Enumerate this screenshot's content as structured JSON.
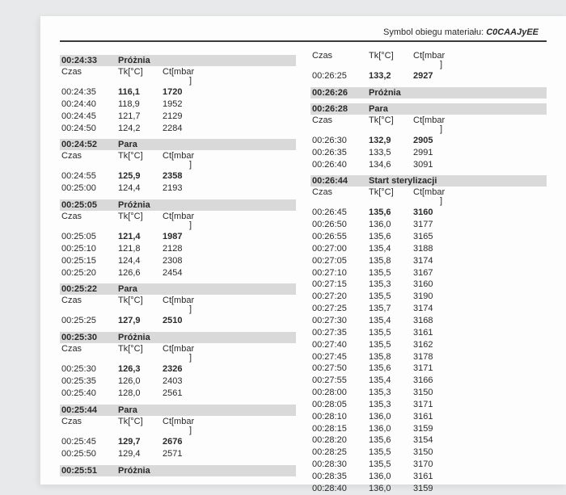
{
  "header": {
    "label": "Symbol obiegu materiału:",
    "code": "C0CAAJyEE"
  },
  "labels": {
    "czas": "Czas",
    "tk": "Tk[°C]",
    "ct": "Ct[mbar",
    "ct2": "]",
    "proznia": "Próżnia",
    "para": "Para",
    "start": "Start sterylizacji"
  },
  "left": [
    {
      "type": "section",
      "time": "00:24:33",
      "label": "proznia",
      "header": true,
      "rows": [
        {
          "t": "00:24:35",
          "tk": "116,1",
          "ct": "1720",
          "bold": true
        },
        {
          "t": "00:24:40",
          "tk": "118,9",
          "ct": "1952"
        },
        {
          "t": "00:24:45",
          "tk": "121,7",
          "ct": "2129"
        },
        {
          "t": "00:24:50",
          "tk": "124,2",
          "ct": "2284"
        }
      ]
    },
    {
      "type": "section",
      "time": "00:24:52",
      "label": "para",
      "header": true,
      "rows": [
        {
          "t": "00:24:55",
          "tk": "125,9",
          "ct": "2358",
          "bold": true
        },
        {
          "t": "00:25:00",
          "tk": "124,4",
          "ct": "2193"
        }
      ]
    },
    {
      "type": "section",
      "time": "00:25:05",
      "label": "proznia",
      "header": true,
      "rows": [
        {
          "t": "00:25:05",
          "tk": "121,4",
          "ct": "1987",
          "bold": true
        },
        {
          "t": "00:25:10",
          "tk": "121,8",
          "ct": "2128"
        },
        {
          "t": "00:25:15",
          "tk": "124,4",
          "ct": "2308"
        },
        {
          "t": "00:25:20",
          "tk": "126,6",
          "ct": "2454"
        }
      ]
    },
    {
      "type": "section",
      "time": "00:25:22",
      "label": "para",
      "header": true,
      "rows": [
        {
          "t": "00:25:25",
          "tk": "127,9",
          "ct": "2510",
          "bold": true
        }
      ]
    },
    {
      "type": "section",
      "time": "00:25:30",
      "label": "proznia",
      "header": true,
      "rows": [
        {
          "t": "00:25:30",
          "tk": "126,3",
          "ct": "2326",
          "bold": true
        },
        {
          "t": "00:25:35",
          "tk": "126,0",
          "ct": "2403"
        },
        {
          "t": "00:25:40",
          "tk": "128,0",
          "ct": "2561"
        }
      ]
    },
    {
      "type": "section",
      "time": "00:25:44",
      "label": "para",
      "header": true,
      "rows": [
        {
          "t": "00:25:45",
          "tk": "129,7",
          "ct": "2676",
          "bold": true
        },
        {
          "t": "00:25:50",
          "tk": "129,4",
          "ct": "2571"
        }
      ]
    },
    {
      "type": "section",
      "time": "00:25:51",
      "label": "proznia",
      "header": false,
      "rows": []
    }
  ],
  "right": [
    {
      "type": "headonly",
      "rows": [
        {
          "t": "00:26:25",
          "tk": "133,2",
          "ct": "2927",
          "bold": true
        }
      ]
    },
    {
      "type": "section",
      "time": "00:26:26",
      "label": "proznia",
      "header": false,
      "rows": []
    },
    {
      "type": "section",
      "time": "00:26:28",
      "label": "para",
      "header": true,
      "rows": [
        {
          "t": "00:26:30",
          "tk": "132,9",
          "ct": "2905",
          "bold": true
        },
        {
          "t": "00:26:35",
          "tk": "133,5",
          "ct": "2991"
        },
        {
          "t": "00:26:40",
          "tk": "134,6",
          "ct": "3091"
        }
      ]
    },
    {
      "type": "section",
      "time": "00:26:44",
      "label": "start",
      "header": true,
      "rows": [
        {
          "t": "00:26:45",
          "tk": "135,6",
          "ct": "3160",
          "bold": true
        },
        {
          "t": "00:26:50",
          "tk": "136,0",
          "ct": "3177"
        },
        {
          "t": "00:26:55",
          "tk": "135,6",
          "ct": "3165"
        },
        {
          "t": "00:27:00",
          "tk": "135,4",
          "ct": "3188"
        },
        {
          "t": "00:27:05",
          "tk": "135,8",
          "ct": "3174"
        },
        {
          "t": "00:27:10",
          "tk": "135,5",
          "ct": "3167"
        },
        {
          "t": "00:27:15",
          "tk": "135,3",
          "ct": "3160"
        },
        {
          "t": "00:27:20",
          "tk": "135,5",
          "ct": "3190"
        },
        {
          "t": "00:27:25",
          "tk": "135,7",
          "ct": "3174"
        },
        {
          "t": "00:27:30",
          "tk": "135,4",
          "ct": "3168"
        },
        {
          "t": "00:27:35",
          "tk": "135,5",
          "ct": "3161"
        },
        {
          "t": "00:27:40",
          "tk": "135,5",
          "ct": "3162"
        },
        {
          "t": "00:27:45",
          "tk": "135,8",
          "ct": "3178"
        },
        {
          "t": "00:27:50",
          "tk": "135,6",
          "ct": "3171"
        },
        {
          "t": "00:27:55",
          "tk": "135,4",
          "ct": "3166"
        },
        {
          "t": "00:28:00",
          "tk": "135,3",
          "ct": "3150"
        },
        {
          "t": "00:28:05",
          "tk": "135,3",
          "ct": "3171"
        },
        {
          "t": "00:28:10",
          "tk": "136,0",
          "ct": "3161"
        },
        {
          "t": "00:28:15",
          "tk": "136,0",
          "ct": "3159"
        },
        {
          "t": "00:28:20",
          "tk": "135,6",
          "ct": "3154"
        },
        {
          "t": "00:28:25",
          "tk": "135,5",
          "ct": "3150"
        },
        {
          "t": "00:28:30",
          "tk": "135,5",
          "ct": "3170"
        },
        {
          "t": "00:28:35",
          "tk": "136,0",
          "ct": "3161"
        },
        {
          "t": "00:28:40",
          "tk": "136,0",
          "ct": "3159"
        }
      ]
    }
  ]
}
